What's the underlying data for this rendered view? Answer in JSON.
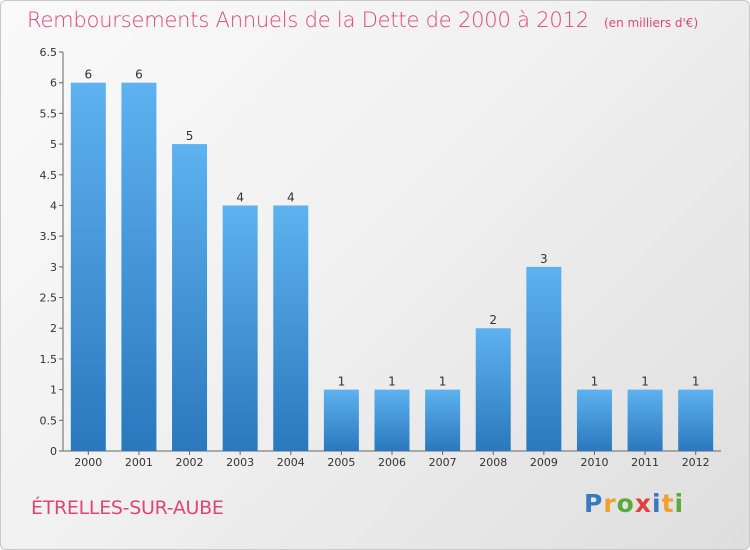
{
  "title": "Remboursements Annuels de la Dette de 2000 à 2012",
  "unit": "(en milliers d'€)",
  "commune": "ÉTRELLES-SUR-AUBE",
  "logo": {
    "letters": [
      "P",
      "r",
      "o",
      "x",
      "i",
      "t",
      "i"
    ],
    "colors": [
      "#3a78c2",
      "#f0a030",
      "#5aaa3a",
      "#e04040",
      "#3a78c2",
      "#f0a030",
      "#5aaa3a"
    ]
  },
  "colors": {
    "bar_top": "#5eb2ef",
    "bar_bottom": "#2a78bd",
    "accent": "#e0457a"
  },
  "chart_data": {
    "type": "bar",
    "title": "Remboursements Annuels de la Dette de 2000 à 2012",
    "categories": [
      "2000",
      "2001",
      "2002",
      "2003",
      "2004",
      "2005",
      "2006",
      "2007",
      "2008",
      "2009",
      "2010",
      "2011",
      "2012"
    ],
    "values": [
      6,
      6,
      5,
      4,
      4,
      1,
      1,
      1,
      2,
      3,
      1,
      1,
      1
    ],
    "data_labels": [
      "6",
      "6",
      "5",
      "4",
      "4",
      "1",
      "1",
      "1",
      "2",
      "3",
      "1",
      "1",
      "1"
    ],
    "yticks": [
      "0",
      "0.5",
      "1",
      "1.5",
      "2",
      "2.5",
      "3",
      "3.5",
      "4",
      "4.5",
      "5",
      "5.5",
      "6",
      "6.5"
    ],
    "ylim": [
      0,
      6.5
    ],
    "grid": false
  }
}
